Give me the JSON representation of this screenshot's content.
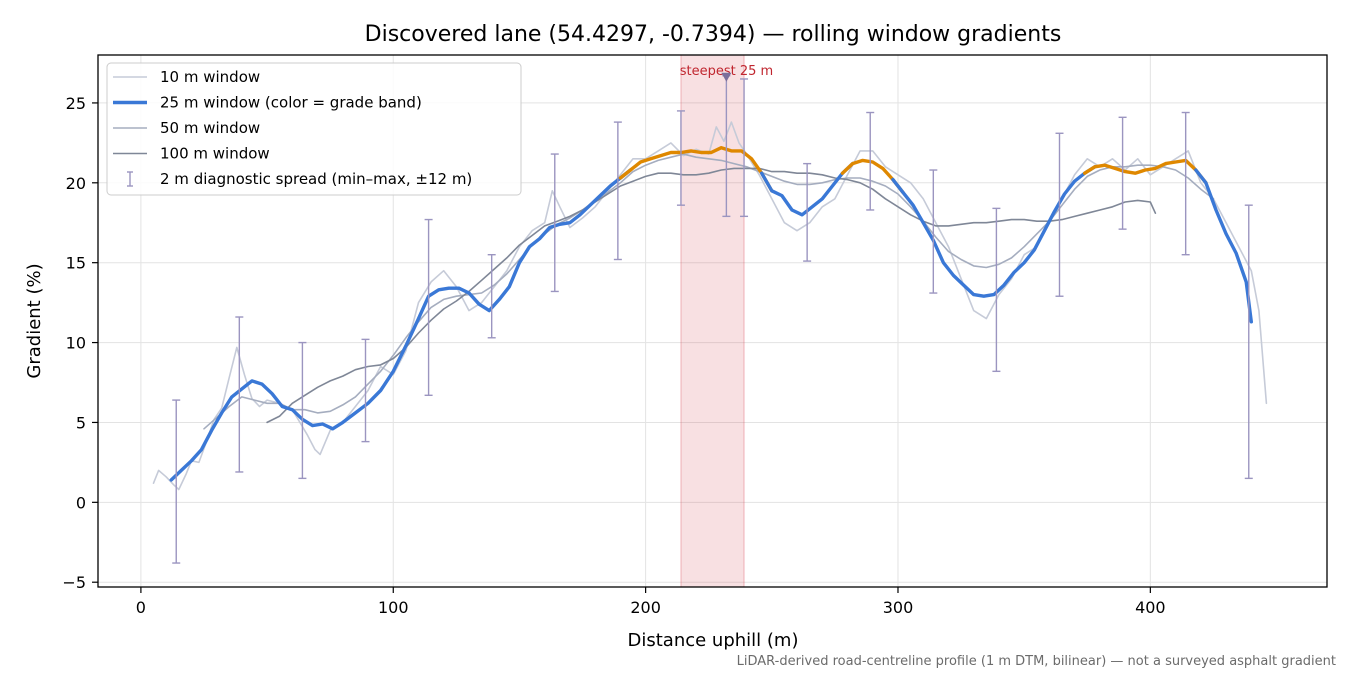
{
  "chart_data": {
    "type": "line",
    "title": "Discovered lane (54.4297, -0.7394) — rolling window gradients",
    "xlabel": "Distance uphill (m)",
    "ylabel": "Gradient (%)",
    "xlim": [
      -17,
      470
    ],
    "ylim": [
      -5.3,
      28
    ],
    "xticks": [
      0,
      100,
      200,
      300,
      400
    ],
    "yticks": [
      -5,
      0,
      5,
      10,
      15,
      20,
      25
    ],
    "grid": true,
    "legend_position": "top-left",
    "footnote": "LiDAR-derived road-centreline profile (1 m DTM, bilinear) — not a surveyed asphalt gradient",
    "highlight": {
      "label": "steepest 25 m",
      "x_range": [
        214,
        239
      ],
      "marker": {
        "x": 232,
        "y": 26.7
      },
      "color": "#c0262f"
    },
    "grade_band_colors": {
      "low": "#3a78d6",
      "high": "#df8800",
      "threshold": 20.5
    },
    "series": [
      {
        "name": "10 m window",
        "color": "#c6cbd8",
        "x": [
          5,
          7,
          10,
          13,
          15,
          18,
          20,
          23,
          26,
          29,
          32,
          35,
          38,
          41,
          44,
          47,
          50,
          55,
          60,
          63,
          66,
          69,
          71,
          75,
          80,
          85,
          90,
          95,
          100,
          105,
          110,
          115,
          120,
          125,
          130,
          135,
          140,
          145,
          150,
          155,
          160,
          163,
          166,
          170,
          175,
          180,
          185,
          190,
          195,
          200,
          205,
          210,
          215,
          220,
          225,
          228,
          231,
          234,
          237,
          240,
          245,
          250,
          255,
          260,
          265,
          270,
          275,
          280,
          285,
          290,
          295,
          300,
          305,
          310,
          315,
          320,
          325,
          330,
          335,
          340,
          345,
          350,
          355,
          360,
          365,
          370,
          375,
          380,
          385,
          390,
          395,
          400,
          405,
          410,
          415,
          420,
          425,
          430,
          435,
          440,
          443,
          446
        ],
        "y": [
          1.2,
          2.0,
          1.6,
          1.1,
          0.8,
          1.8,
          2.6,
          2.5,
          3.8,
          5.2,
          5.9,
          7.8,
          9.7,
          8.0,
          6.5,
          6.0,
          6.4,
          6.2,
          5.8,
          5.0,
          4.2,
          3.3,
          3.0,
          4.5,
          5.0,
          6.0,
          7.0,
          8.5,
          8.0,
          9.5,
          12.5,
          13.8,
          14.5,
          13.5,
          12.0,
          12.5,
          13.5,
          14.5,
          16.0,
          17.0,
          17.5,
          19.5,
          18.5,
          17.2,
          17.8,
          18.5,
          19.5,
          20.5,
          21.5,
          21.5,
          22.0,
          22.5,
          21.7,
          22.1,
          21.8,
          23.5,
          22.6,
          23.8,
          22.5,
          21.8,
          20.5,
          19.0,
          17.5,
          17.0,
          17.5,
          18.5,
          19.0,
          20.5,
          22.0,
          22.0,
          21.0,
          20.5,
          20.0,
          19.0,
          17.5,
          16.0,
          14.0,
          12.0,
          11.5,
          13.0,
          14.0,
          15.5,
          16.0,
          17.5,
          19.0,
          20.5,
          21.5,
          21.0,
          21.5,
          20.8,
          21.5,
          20.5,
          21.0,
          21.5,
          22.0,
          20.0,
          19.0,
          17.5,
          16.0,
          14.5,
          12.0,
          6.2
        ]
      },
      {
        "name": "25 m window (color = grade band)",
        "color": "#3a78d6",
        "x": [
          12,
          16,
          20,
          24,
          28,
          32,
          36,
          40,
          44,
          48,
          52,
          56,
          60,
          64,
          68,
          72,
          76,
          80,
          85,
          90,
          95,
          100,
          105,
          110,
          114,
          118,
          122,
          126,
          130,
          134,
          138,
          142,
          146,
          150,
          154,
          158,
          162,
          166,
          170,
          174,
          178,
          182,
          186,
          190,
          194,
          198,
          202,
          206,
          210,
          214,
          218,
          222,
          226,
          230,
          234,
          238,
          242,
          246,
          250,
          254,
          258,
          262,
          266,
          270,
          274,
          278,
          282,
          286,
          290,
          294,
          298,
          302,
          306,
          310,
          314,
          318,
          322,
          326,
          330,
          334,
          338,
          342,
          346,
          350,
          354,
          358,
          362,
          366,
          370,
          374,
          378,
          382,
          386,
          390,
          394,
          398,
          402,
          406,
          410,
          414,
          418,
          422,
          426,
          430,
          434,
          438,
          440
        ],
        "y": [
          1.4,
          2.0,
          2.6,
          3.3,
          4.5,
          5.6,
          6.6,
          7.1,
          7.6,
          7.4,
          6.8,
          6.0,
          5.8,
          5.2,
          4.8,
          4.9,
          4.6,
          5.0,
          5.6,
          6.2,
          7.0,
          8.2,
          9.8,
          11.5,
          12.9,
          13.3,
          13.4,
          13.4,
          13.1,
          12.4,
          12.0,
          12.7,
          13.5,
          15.0,
          16.0,
          16.5,
          17.2,
          17.4,
          17.5,
          18.0,
          18.6,
          19.2,
          19.8,
          20.3,
          20.8,
          21.3,
          21.5,
          21.7,
          21.9,
          21.9,
          22.0,
          21.9,
          21.9,
          22.2,
          22.0,
          22.0,
          21.5,
          20.6,
          19.5,
          19.2,
          18.3,
          18.0,
          18.5,
          19.0,
          19.8,
          20.6,
          21.2,
          21.4,
          21.3,
          20.9,
          20.2,
          19.4,
          18.6,
          17.5,
          16.4,
          15.0,
          14.2,
          13.6,
          13.0,
          12.9,
          13.0,
          13.6,
          14.4,
          15.0,
          15.8,
          17.0,
          18.2,
          19.3,
          20.1,
          20.6,
          21.0,
          21.1,
          20.9,
          20.7,
          20.6,
          20.8,
          20.9,
          21.2,
          21.3,
          21.4,
          20.8,
          20.0,
          18.3,
          16.8,
          15.6,
          13.8,
          11.3
        ]
      },
      {
        "name": "50 m window",
        "color": "#a5adbf",
        "x": [
          25,
          30,
          35,
          40,
          45,
          50,
          55,
          60,
          65,
          70,
          75,
          80,
          85,
          90,
          95,
          100,
          105,
          110,
          115,
          120,
          125,
          130,
          135,
          140,
          145,
          150,
          155,
          160,
          165,
          170,
          175,
          180,
          185,
          190,
          195,
          200,
          205,
          210,
          215,
          220,
          225,
          230,
          235,
          240,
          245,
          250,
          255,
          260,
          265,
          270,
          275,
          280,
          285,
          290,
          295,
          300,
          305,
          310,
          315,
          320,
          325,
          330,
          335,
          340,
          345,
          350,
          355,
          360,
          365,
          370,
          375,
          380,
          385,
          390,
          395,
          400,
          405,
          410,
          415,
          420,
          425
        ],
        "y": [
          4.6,
          5.3,
          6.0,
          6.6,
          6.4,
          6.2,
          6.2,
          5.8,
          5.8,
          5.6,
          5.7,
          6.1,
          6.6,
          7.4,
          8.2,
          9.2,
          10.3,
          11.3,
          12.2,
          12.7,
          12.9,
          13.0,
          13.1,
          13.6,
          14.3,
          15.2,
          16.1,
          16.8,
          17.4,
          17.8,
          18.3,
          18.9,
          19.4,
          20.0,
          20.7,
          21.1,
          21.4,
          21.6,
          21.8,
          21.6,
          21.5,
          21.4,
          21.2,
          21.0,
          20.7,
          20.4,
          20.1,
          19.9,
          19.9,
          20.0,
          20.2,
          20.3,
          20.3,
          20.1,
          19.8,
          19.3,
          18.5,
          17.6,
          16.6,
          15.7,
          15.2,
          14.8,
          14.7,
          14.9,
          15.3,
          16.0,
          16.8,
          17.6,
          18.6,
          19.6,
          20.4,
          20.8,
          21.0,
          21.0,
          21.1,
          21.1,
          21.0,
          20.8,
          20.3,
          19.6,
          19.0
        ]
      },
      {
        "name": "100 m window",
        "color": "#7f8797",
        "x": [
          50,
          55,
          60,
          65,
          70,
          75,
          80,
          85,
          90,
          95,
          100,
          105,
          110,
          115,
          120,
          125,
          130,
          135,
          140,
          145,
          150,
          155,
          160,
          165,
          170,
          175,
          180,
          185,
          190,
          195,
          200,
          205,
          210,
          215,
          220,
          225,
          230,
          235,
          240,
          245,
          250,
          255,
          260,
          265,
          270,
          275,
          280,
          285,
          290,
          295,
          300,
          305,
          310,
          315,
          320,
          325,
          330,
          335,
          340,
          345,
          350,
          355,
          360,
          365,
          370,
          375,
          380,
          385,
          390,
          395,
          400,
          402
        ],
        "y": [
          5.0,
          5.4,
          6.2,
          6.7,
          7.2,
          7.6,
          7.9,
          8.3,
          8.5,
          8.6,
          9.0,
          9.7,
          10.6,
          11.4,
          12.1,
          12.6,
          13.2,
          13.9,
          14.6,
          15.3,
          16.1,
          16.7,
          17.3,
          17.6,
          17.9,
          18.3,
          18.8,
          19.3,
          19.8,
          20.1,
          20.4,
          20.6,
          20.6,
          20.5,
          20.5,
          20.6,
          20.8,
          20.9,
          20.9,
          20.9,
          20.7,
          20.7,
          20.6,
          20.6,
          20.5,
          20.3,
          20.2,
          20.0,
          19.6,
          19.0,
          18.5,
          18.0,
          17.6,
          17.3,
          17.3,
          17.4,
          17.5,
          17.5,
          17.6,
          17.7,
          17.7,
          17.6,
          17.6,
          17.7,
          17.9,
          18.1,
          18.3,
          18.5,
          18.8,
          18.9,
          18.8,
          18.1
        ]
      }
    ],
    "diagnostic_spread": {
      "name": "2 m diagnostic spread (min–max, ±12 m)",
      "color": "#9b95c0",
      "points": [
        {
          "x": 14,
          "min": -3.8,
          "max": 6.4
        },
        {
          "x": 39,
          "min": 1.9,
          "max": 11.6
        },
        {
          "x": 64,
          "min": 1.5,
          "max": 10.0
        },
        {
          "x": 89,
          "min": 3.8,
          "max": 10.2
        },
        {
          "x": 114,
          "min": 6.7,
          "max": 17.7
        },
        {
          "x": 139,
          "min": 10.3,
          "max": 15.5
        },
        {
          "x": 164,
          "min": 13.2,
          "max": 21.8
        },
        {
          "x": 189,
          "min": 15.2,
          "max": 23.8
        },
        {
          "x": 214,
          "min": 18.6,
          "max": 24.5
        },
        {
          "x": 232,
          "min": 17.9,
          "max": 26.7
        },
        {
          "x": 239,
          "min": 17.9,
          "max": 26.5
        },
        {
          "x": 264,
          "min": 15.1,
          "max": 21.2
        },
        {
          "x": 289,
          "min": 18.3,
          "max": 24.4
        },
        {
          "x": 314,
          "min": 13.1,
          "max": 20.8
        },
        {
          "x": 339,
          "min": 8.2,
          "max": 18.4
        },
        {
          "x": 364,
          "min": 12.9,
          "max": 23.1
        },
        {
          "x": 389,
          "min": 17.1,
          "max": 24.1
        },
        {
          "x": 414,
          "min": 15.5,
          "max": 24.4
        },
        {
          "x": 439,
          "min": 1.5,
          "max": 18.6
        }
      ]
    }
  }
}
